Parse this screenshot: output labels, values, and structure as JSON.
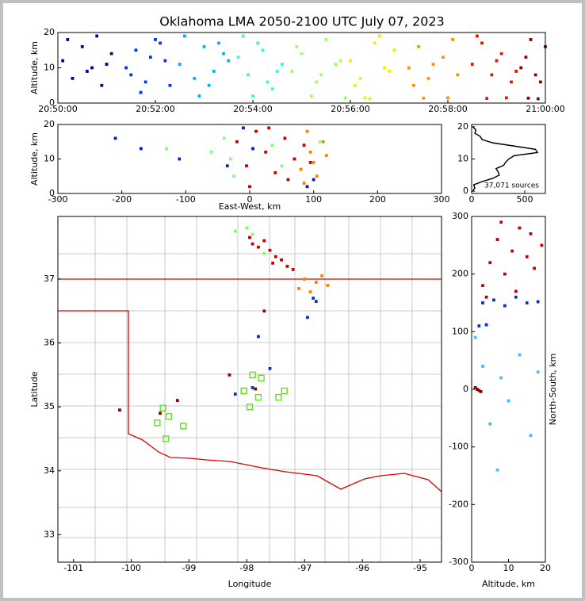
{
  "chart_data": [
    {
      "type": "scatter",
      "title": "Oklahoma LMA 2050-2100 UTC July 07, 2023",
      "ylabel": "Altitude, km",
      "xlim": [
        1250,
        1260
      ],
      "ylim": [
        0,
        20
      ],
      "xticks": [
        {
          "value": 1250,
          "label": "20:50:00"
        },
        {
          "value": 1252,
          "label": "20:52:00"
        },
        {
          "value": 1254,
          "label": "20:54:00"
        },
        {
          "value": 1256,
          "label": "20:56:00"
        },
        {
          "value": 1258,
          "label": "20:58:00"
        },
        {
          "value": 1260,
          "label": "21:00:00"
        }
      ],
      "yticks": [
        0,
        10,
        20
      ],
      "series": [
        {
          "color": "#00008b",
          "x": [
            1250.1,
            1250.3,
            1250.5,
            1250.7,
            1250.9,
            1251.1,
            1250.2,
            1250.6,
            1251.0,
            1250.8
          ],
          "values": [
            12,
            7,
            16,
            10,
            5,
            14,
            18,
            9,
            11,
            19
          ]
        },
        {
          "color": "#0030ff",
          "x": [
            1251.4,
            1251.6,
            1251.8,
            1252.0,
            1252.2,
            1251.5,
            1251.9,
            1252.3,
            1252.1,
            1251.7
          ],
          "values": [
            10,
            15,
            6,
            18,
            12,
            8,
            13,
            5,
            17,
            3
          ]
        },
        {
          "color": "#00b0ff",
          "x": [
            1252.5,
            1252.8,
            1253.0,
            1253.2,
            1253.4,
            1252.6,
            1253.1,
            1253.5,
            1252.9,
            1253.3
          ],
          "values": [
            11,
            7,
            16,
            9,
            14,
            19,
            5,
            12,
            2,
            17
          ]
        },
        {
          "color": "#30ffd0",
          "x": [
            1253.7,
            1253.9,
            1254.1,
            1254.3,
            1254.6,
            1253.8,
            1254.2,
            1254.5,
            1254.0,
            1254.4
          ],
          "values": [
            13,
            8,
            17,
            6,
            11,
            19,
            15,
            9,
            2,
            4
          ]
        },
        {
          "color": "#a0ff60",
          "x": [
            1254.8,
            1255.0,
            1255.3,
            1255.5,
            1255.8,
            1254.9,
            1255.4,
            1255.7,
            1255.2,
            1255.9
          ],
          "values": [
            9,
            14,
            6,
            18,
            12,
            16,
            8,
            11,
            2,
            1.5
          ]
        },
        {
          "color": "#f0f000",
          "x": [
            1256.0,
            1256.2,
            1256.5,
            1256.7,
            1256.9,
            1256.1,
            1256.6,
            1256.3,
            1256.8,
            1256.4
          ],
          "values": [
            12,
            7,
            17,
            10,
            15,
            5,
            19,
            1.5,
            9,
            1.2
          ]
        },
        {
          "color": "#ff9000",
          "x": [
            1257.2,
            1257.4,
            1257.6,
            1257.9,
            1258.1,
            1257.3,
            1257.7,
            1258.0,
            1257.5,
            1258.2
          ],
          "values": [
            10,
            16,
            7,
            13,
            18,
            5,
            11,
            1.5,
            1.4,
            8
          ]
        },
        {
          "color": "#f01000",
          "x": [
            1258.5,
            1258.7,
            1258.9,
            1259.1,
            1259.3,
            1258.6,
            1259.0,
            1259.2,
            1258.8,
            1259.4
          ],
          "values": [
            11,
            17,
            8,
            14,
            6,
            19,
            12,
            1.5,
            1.3,
            9
          ]
        },
        {
          "color": "#900000",
          "x": [
            1259.6,
            1259.8,
            1260.0,
            1259.5,
            1259.7,
            1259.9,
            1259.65,
            1259.85
          ],
          "values": [
            13,
            8,
            16,
            10,
            18,
            6,
            1.4,
            1.2
          ]
        }
      ]
    },
    {
      "type": "scatter",
      "xlabel": "East-West, km",
      "ylabel": "Altitude, km",
      "xlim": [
        -300,
        300
      ],
      "ylim": [
        0,
        20
      ],
      "xticks": [
        -300,
        -200,
        -100,
        0,
        100,
        200,
        300
      ],
      "yticks": [
        0,
        10,
        20
      ],
      "series": [
        {
          "color": "#80ff80",
          "x": [
            -30,
            -40,
            -25,
            35,
            50,
            -60,
            110,
            -130
          ],
          "values": [
            10,
            16,
            5,
            14,
            8,
            12,
            15,
            13
          ]
        },
        {
          "color": "#0020c0",
          "x": [
            -10,
            5,
            100,
            -35,
            90,
            -110,
            -170,
            -210
          ],
          "values": [
            19,
            13,
            4,
            8,
            2,
            10,
            13,
            16
          ]
        },
        {
          "color": "#ff8000",
          "x": [
            80,
            95,
            105,
            115,
            90,
            100,
            120,
            85
          ],
          "values": [
            7,
            12,
            5,
            15,
            18,
            9,
            11,
            3
          ]
        },
        {
          "color": "#c00000",
          "x": [
            -20,
            -5,
            10,
            25,
            40,
            55,
            70,
            85,
            95,
            0,
            30,
            60
          ],
          "values": [
            15,
            8,
            18,
            12,
            6,
            16,
            10,
            14,
            9,
            2,
            19,
            4
          ]
        }
      ]
    },
    {
      "type": "line",
      "annotation": "37,071 sources",
      "xlim": [
        0,
        694
      ],
      "ylim": [
        -0.7,
        20.7
      ],
      "xticks": [
        0,
        500
      ],
      "yticks": [
        0,
        10,
        20
      ],
      "series": [
        {
          "color": "#000000",
          "x": [
            10,
            30,
            20,
            100,
            200,
            260,
            250,
            230,
            300,
            320,
            350,
            400,
            620,
            600,
            400,
            200,
            100,
            80,
            30,
            40,
            10
          ],
          "values": [
            0,
            1,
            2,
            3,
            4,
            5,
            6,
            7,
            8,
            9,
            10,
            11,
            12,
            13,
            14,
            15,
            16,
            17,
            18,
            19,
            20
          ]
        }
      ]
    },
    {
      "type": "scatter",
      "xlabel": "Longitude",
      "ylabel": "Latitude",
      "xlim": [
        -101.27,
        -94.63
      ],
      "ylim": [
        32.57,
        37.98
      ],
      "xticks": [
        -101,
        -100,
        -99,
        -98,
        -97,
        -96,
        -95
      ],
      "yticks": [
        33,
        34,
        35,
        36,
        37
      ],
      "series": [
        {
          "color": "#80ff60",
          "x": [
            -98.2,
            -98.0,
            -97.9,
            -97.7
          ],
          "values": [
            37.75,
            37.8,
            37.7,
            37.4
          ]
        },
        {
          "color": "#900000",
          "x": [
            -97.85,
            -98.3,
            -99.2,
            -100.2,
            -99.5,
            -97.7
          ],
          "values": [
            35.28,
            35.5,
            35.1,
            34.95,
            34.9,
            36.5
          ]
        },
        {
          "color": "#0030d0",
          "x": [
            -96.85,
            -96.8,
            -96.95,
            -97.8,
            -97.6,
            -98.2,
            -97.9
          ],
          "values": [
            36.7,
            36.65,
            36.4,
            36.1,
            35.6,
            35.2,
            35.3
          ]
        },
        {
          "color": "#ff8000",
          "x": [
            -97.0,
            -96.8,
            -96.7,
            -96.9,
            -96.6,
            -97.1
          ],
          "values": [
            37.0,
            36.95,
            37.05,
            36.8,
            36.9,
            36.85
          ]
        },
        {
          "color": "#c00000",
          "x": [
            -97.9,
            -97.7,
            -97.5,
            -97.3,
            -97.6,
            -97.8,
            -97.4,
            -97.2,
            -97.95,
            -97.55
          ],
          "values": [
            37.55,
            37.6,
            37.35,
            37.2,
            37.45,
            37.5,
            37.3,
            37.15,
            37.65,
            37.25
          ]
        },
        {
          "color": "#66dd22",
          "marker": "square-open",
          "x": [
            -97.9,
            -98.05,
            -97.75,
            -97.8,
            -97.95,
            -97.35,
            -97.45,
            -99.45,
            -99.55,
            -99.35,
            -99.4,
            -99.1,
            -98.05
          ],
          "values": [
            35.5,
            35.25,
            35.45,
            35.15,
            35.0,
            35.25,
            35.15,
            34.98,
            34.75,
            34.85,
            34.5,
            34.7,
            35.25
          ]
        }
      ]
    },
    {
      "type": "scatter",
      "xlabel": "Altitude, km",
      "ylabel": "North-South, km",
      "ylabel_side": "right",
      "xlim": [
        0,
        20
      ],
      "ylim": [
        -300,
        300
      ],
      "xticks": [
        0,
        10,
        20
      ],
      "yticks": [
        -300,
        -200,
        -100,
        0,
        100,
        200,
        300
      ],
      "series": [
        {
          "color": "#40c0ff",
          "x": [
            1,
            3,
            5,
            8,
            10,
            13,
            16,
            7,
            18
          ],
          "values": [
            90,
            40,
            -60,
            20,
            -20,
            60,
            -80,
            -140,
            30
          ]
        },
        {
          "color": "#0030d0",
          "x": [
            3,
            6,
            9,
            12,
            15,
            18,
            2,
            4
          ],
          "values": [
            150,
            155,
            145,
            160,
            150,
            152,
            110,
            112
          ]
        },
        {
          "color": "#c00000",
          "x": [
            3,
            5,
            7,
            9,
            11,
            13,
            15,
            17,
            19,
            4,
            8,
            12,
            16
          ],
          "values": [
            180,
            220,
            260,
            200,
            240,
            280,
            230,
            210,
            250,
            160,
            290,
            170,
            270
          ]
        },
        {
          "color": "#900000",
          "x": [
            1,
            2,
            1.5,
            2.5
          ],
          "values": [
            3,
            -2,
            0,
            -4
          ]
        }
      ]
    }
  ]
}
